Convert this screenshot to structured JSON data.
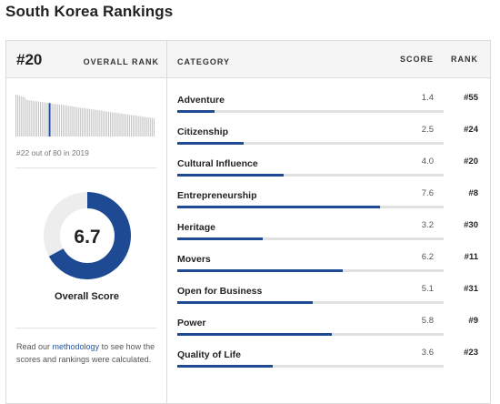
{
  "page_title": "South Korea Rankings",
  "overall": {
    "rank": "#20",
    "rank_label": "OVERALL RANK",
    "previous_note": "#22 out of 80 in 2019",
    "score": "6.7",
    "score_fraction": 0.67,
    "score_label": "Overall Score"
  },
  "methodology": {
    "prefix": "Read our ",
    "link": "methodology",
    "suffix": " to see how the scores and rankings were calculated."
  },
  "table": {
    "col_category": "CATEGORY",
    "col_score": "SCORE",
    "col_rank": "RANK"
  },
  "categories": [
    {
      "name": "Adventure",
      "score": "1.4",
      "rank": "#55",
      "fill": 0.14
    },
    {
      "name": "Citizenship",
      "score": "2.5",
      "rank": "#24",
      "fill": 0.25
    },
    {
      "name": "Cultural Influence",
      "score": "4.0",
      "rank": "#20",
      "fill": 0.4
    },
    {
      "name": "Entrepreneurship",
      "score": "7.6",
      "rank": "#8",
      "fill": 0.76
    },
    {
      "name": "Heritage",
      "score": "3.2",
      "rank": "#30",
      "fill": 0.32
    },
    {
      "name": "Movers",
      "score": "6.2",
      "rank": "#11",
      "fill": 0.62
    },
    {
      "name": "Open for Business",
      "score": "5.1",
      "rank": "#31",
      "fill": 0.51
    },
    {
      "name": "Power",
      "score": "5.8",
      "rank": "#9",
      "fill": 0.58
    },
    {
      "name": "Quality of Life",
      "score": "3.6",
      "rank": "#23",
      "fill": 0.36
    }
  ],
  "sparkline": {
    "total_countries": 80,
    "highlight_rank": 20
  },
  "colors": {
    "accent": "#1e4a94",
    "track": "#e1e1e1",
    "spark_bar": "#bdbdbd",
    "donut_track": "#ededed"
  }
}
